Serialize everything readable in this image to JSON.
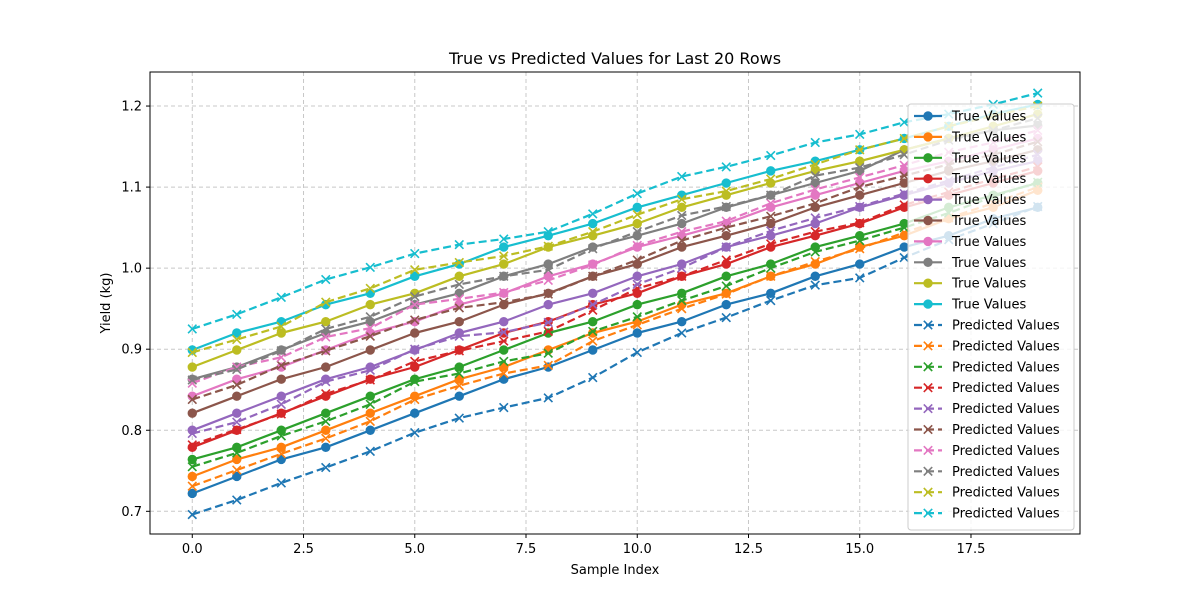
{
  "chart_data": {
    "type": "line",
    "title": "True vs Predicted Values for Last 20 Rows",
    "xlabel": "Sample Index",
    "ylabel": "Yield (kg)",
    "xlim": [
      -0.95,
      19.95
    ],
    "ylim": [
      0.672,
      1.242
    ],
    "xticks": [
      0.0,
      2.5,
      5.0,
      7.5,
      10.0,
      12.5,
      15.0,
      17.5
    ],
    "xtick_labels": [
      "0.0",
      "2.5",
      "5.0",
      "7.5",
      "10.0",
      "12.5",
      "15.0",
      "17.5"
    ],
    "yticks": [
      0.7,
      0.8,
      0.9,
      1.0,
      1.1,
      1.2
    ],
    "ytick_labels": [
      "0.7",
      "0.8",
      "0.9",
      "1.0",
      "1.1",
      "1.2"
    ],
    "grid": true,
    "legend_position": "right",
    "x": [
      0,
      1,
      2,
      3,
      4,
      5,
      6,
      7,
      8,
      9,
      10,
      11,
      12,
      13,
      14,
      15,
      16,
      17,
      18,
      19
    ],
    "series": [
      {
        "name": "True Values",
        "color": "#1f77b4",
        "style": "solid",
        "marker": "circle",
        "values": [
          0.722,
          0.743,
          0.764,
          0.779,
          0.8,
          0.821,
          0.842,
          0.863,
          0.878,
          0.899,
          0.92,
          0.934,
          0.955,
          0.969,
          0.99,
          1.005,
          1.026,
          1.04,
          1.061,
          1.075
        ]
      },
      {
        "name": "True Values",
        "color": "#ff7f0e",
        "style": "solid",
        "marker": "circle",
        "values": [
          0.743,
          0.764,
          0.779,
          0.8,
          0.821,
          0.842,
          0.863,
          0.878,
          0.899,
          0.92,
          0.934,
          0.955,
          0.969,
          0.99,
          1.005,
          1.026,
          1.04,
          1.061,
          1.075,
          1.096
        ]
      },
      {
        "name": "True Values",
        "color": "#2ca02c",
        "style": "solid",
        "marker": "circle",
        "values": [
          0.764,
          0.779,
          0.8,
          0.821,
          0.842,
          0.863,
          0.878,
          0.899,
          0.92,
          0.934,
          0.955,
          0.969,
          0.99,
          1.005,
          1.026,
          1.04,
          1.055,
          1.075,
          1.09,
          1.105
        ]
      },
      {
        "name": "True Values",
        "color": "#d62728",
        "style": "solid",
        "marker": "circle",
        "values": [
          0.779,
          0.8,
          0.821,
          0.842,
          0.863,
          0.878,
          0.899,
          0.92,
          0.934,
          0.955,
          0.969,
          0.99,
          1.005,
          1.026,
          1.04,
          1.055,
          1.075,
          1.09,
          1.105,
          1.12
        ]
      },
      {
        "name": "True Values",
        "color": "#9467bd",
        "style": "solid",
        "marker": "circle",
        "values": [
          0.8,
          0.821,
          0.842,
          0.863,
          0.878,
          0.899,
          0.92,
          0.934,
          0.955,
          0.969,
          0.99,
          1.005,
          1.026,
          1.04,
          1.055,
          1.075,
          1.09,
          1.105,
          1.12,
          1.132
        ]
      },
      {
        "name": "True Values",
        "color": "#8c564b",
        "style": "solid",
        "marker": "circle",
        "values": [
          0.821,
          0.842,
          0.863,
          0.878,
          0.899,
          0.92,
          0.934,
          0.955,
          0.969,
          0.99,
          1.005,
          1.026,
          1.04,
          1.055,
          1.075,
          1.09,
          1.105,
          1.12,
          1.132,
          1.146
        ]
      },
      {
        "name": "True Values",
        "color": "#e377c2",
        "style": "solid",
        "marker": "circle",
        "values": [
          0.842,
          0.863,
          0.878,
          0.899,
          0.92,
          0.934,
          0.955,
          0.969,
          0.99,
          1.005,
          1.026,
          1.04,
          1.055,
          1.075,
          1.09,
          1.105,
          1.12,
          1.132,
          1.146,
          1.16
        ]
      },
      {
        "name": "True Values",
        "color": "#7f7f7f",
        "style": "solid",
        "marker": "circle",
        "values": [
          0.863,
          0.878,
          0.899,
          0.92,
          0.934,
          0.955,
          0.969,
          0.99,
          1.005,
          1.026,
          1.04,
          1.055,
          1.075,
          1.09,
          1.105,
          1.12,
          1.146,
          1.16,
          1.17,
          1.176
        ]
      },
      {
        "name": "True Values",
        "color": "#bcbd22",
        "style": "solid",
        "marker": "circle",
        "values": [
          0.878,
          0.899,
          0.92,
          0.934,
          0.955,
          0.969,
          0.99,
          1.005,
          1.026,
          1.04,
          1.055,
          1.075,
          1.09,
          1.105,
          1.12,
          1.132,
          1.146,
          1.16,
          1.175,
          1.19
        ]
      },
      {
        "name": "True Values",
        "color": "#17becf",
        "style": "solid",
        "marker": "circle",
        "values": [
          0.899,
          0.92,
          0.934,
          0.955,
          0.969,
          0.99,
          1.005,
          1.026,
          1.04,
          1.055,
          1.075,
          1.09,
          1.105,
          1.12,
          1.132,
          1.146,
          1.16,
          1.175,
          1.19,
          1.202
        ]
      },
      {
        "name": "Predicted Values",
        "color": "#1f77b4",
        "style": "dashed",
        "marker": "x",
        "values": [
          0.696,
          0.714,
          0.735,
          0.754,
          0.774,
          0.797,
          0.815,
          0.828,
          0.84,
          0.865,
          0.896,
          0.92,
          0.939,
          0.96,
          0.979,
          0.988,
          1.013,
          1.035,
          1.055,
          1.076
        ]
      },
      {
        "name": "Predicted Values",
        "color": "#ff7f0e",
        "style": "dashed",
        "marker": "x",
        "values": [
          0.731,
          0.751,
          0.771,
          0.79,
          0.811,
          0.838,
          0.855,
          0.87,
          0.88,
          0.91,
          0.93,
          0.95,
          0.968,
          0.99,
          1.008,
          1.024,
          1.044,
          1.062,
          1.08,
          1.1
        ]
      },
      {
        "name": "Predicted Values",
        "color": "#2ca02c",
        "style": "dashed",
        "marker": "x",
        "values": [
          0.755,
          0.772,
          0.793,
          0.811,
          0.832,
          0.86,
          0.87,
          0.885,
          0.895,
          0.922,
          0.94,
          0.96,
          0.978,
          1.0,
          1.02,
          1.034,
          1.05,
          1.068,
          1.088,
          1.106
        ]
      },
      {
        "name": "Predicted Values",
        "color": "#d62728",
        "style": "dashed",
        "marker": "x",
        "values": [
          0.782,
          0.801,
          0.82,
          0.845,
          0.862,
          0.885,
          0.898,
          0.91,
          0.922,
          0.948,
          0.975,
          0.99,
          1.01,
          1.03,
          1.045,
          1.056,
          1.078,
          1.094,
          1.11,
          1.125
        ]
      },
      {
        "name": "Predicted Values",
        "color": "#9467bd",
        "style": "dashed",
        "marker": "x",
        "values": [
          0.796,
          0.81,
          0.832,
          0.86,
          0.874,
          0.9,
          0.916,
          0.921,
          0.933,
          0.955,
          0.98,
          1.0,
          1.026,
          1.046,
          1.062,
          1.076,
          1.092,
          1.108,
          1.124,
          1.14
        ]
      },
      {
        "name": "Predicted Values",
        "color": "#8c564b",
        "style": "dashed",
        "marker": "x",
        "values": [
          0.838,
          0.856,
          0.88,
          0.898,
          0.916,
          0.936,
          0.951,
          0.958,
          0.968,
          0.99,
          1.01,
          1.034,
          1.05,
          1.064,
          1.08,
          1.1,
          1.114,
          1.128,
          1.14,
          1.156
        ]
      },
      {
        "name": "Predicted Values",
        "color": "#e377c2",
        "style": "dashed",
        "marker": "x",
        "values": [
          0.858,
          0.878,
          0.89,
          0.915,
          0.926,
          0.955,
          0.962,
          0.97,
          0.985,
          1.004,
          1.028,
          1.045,
          1.058,
          1.08,
          1.097,
          1.112,
          1.127,
          1.143,
          1.155,
          1.17
        ]
      },
      {
        "name": "Predicted Values",
        "color": "#7f7f7f",
        "style": "dashed",
        "marker": "x",
        "values": [
          0.862,
          0.875,
          0.898,
          0.925,
          0.94,
          0.965,
          0.98,
          0.99,
          0.998,
          1.024,
          1.045,
          1.065,
          1.076,
          1.09,
          1.114,
          1.124,
          1.14,
          1.158,
          1.17,
          1.185
        ]
      },
      {
        "name": "Predicted Values",
        "color": "#bcbd22",
        "style": "dashed",
        "marker": "x",
        "values": [
          0.896,
          0.912,
          0.928,
          0.958,
          0.975,
          0.998,
          1.007,
          1.015,
          1.027,
          1.045,
          1.066,
          1.085,
          1.095,
          1.11,
          1.128,
          1.146,
          1.16,
          1.175,
          1.188,
          1.2
        ]
      },
      {
        "name": "Predicted Values",
        "color": "#17becf",
        "style": "dashed",
        "marker": "x",
        "values": [
          0.925,
          0.943,
          0.964,
          0.986,
          1.001,
          1.018,
          1.029,
          1.036,
          1.045,
          1.067,
          1.092,
          1.113,
          1.125,
          1.139,
          1.155,
          1.165,
          1.18,
          1.19,
          1.202,
          1.216
        ]
      }
    ]
  }
}
